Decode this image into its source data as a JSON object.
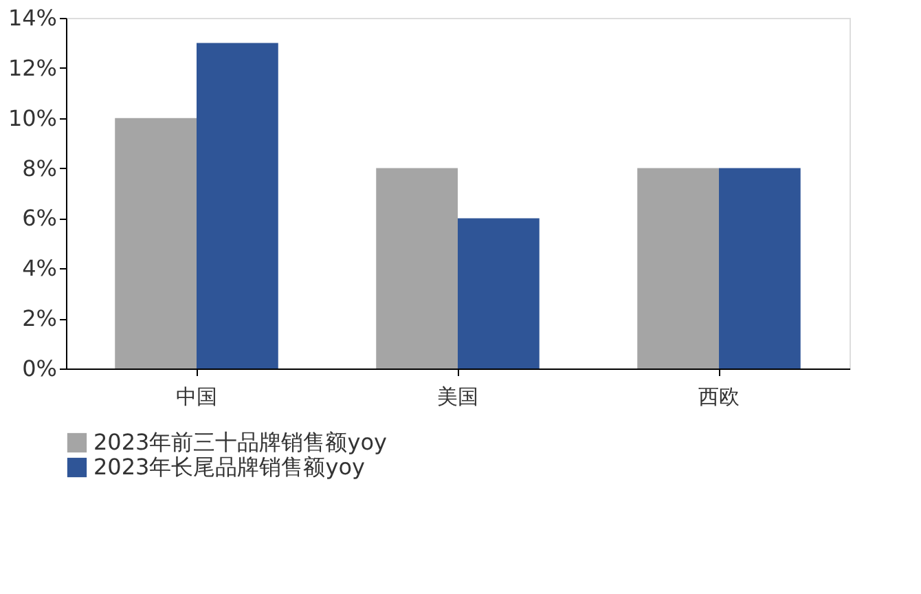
{
  "chart_data": {
    "type": "bar",
    "categories": [
      "中国",
      "美国",
      "西欧"
    ],
    "series": [
      {
        "name": "2023年前三十品牌销售额yoy",
        "color": "#a5a5a5",
        "values": [
          10,
          8,
          8
        ]
      },
      {
        "name": "2023年长尾品牌销售额yoy",
        "color": "#2f5597",
        "values": [
          13,
          6,
          8
        ]
      }
    ],
    "ylim": [
      0,
      14
    ],
    "yticks": [
      {
        "value": 0,
        "label": "0%"
      },
      {
        "value": 2,
        "label": "2%"
      },
      {
        "value": 4,
        "label": "4%"
      },
      {
        "value": 6,
        "label": "6%"
      },
      {
        "value": 8,
        "label": "8%"
      },
      {
        "value": 10,
        "label": "10%"
      },
      {
        "value": 12,
        "label": "12%"
      },
      {
        "value": 14,
        "label": "14%"
      }
    ],
    "grid": false,
    "legend": "bottom"
  }
}
